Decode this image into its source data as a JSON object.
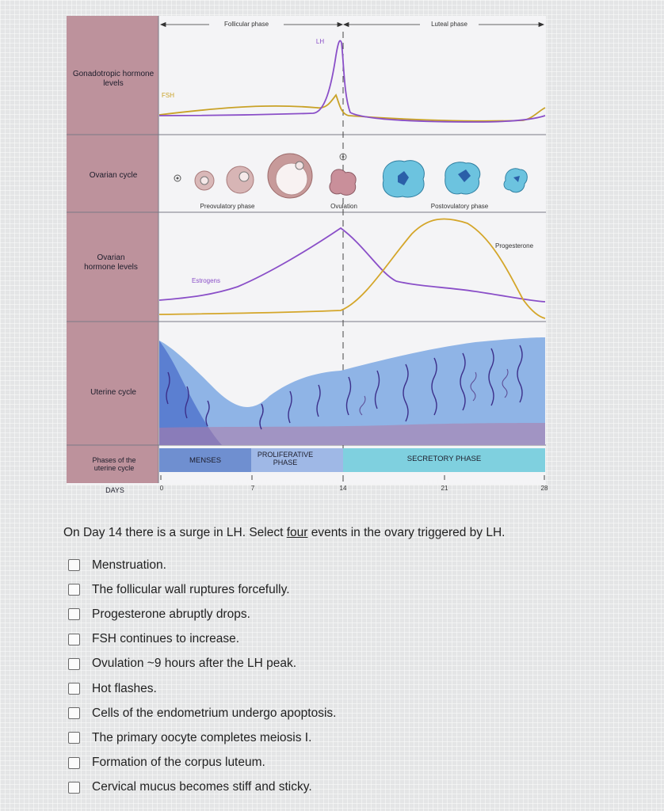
{
  "figure": {
    "row_labels": {
      "gonadotropic": "Gonadotropic hormone levels",
      "ovarian_cycle": "Ovarian cycle",
      "ovarian_hormone": "Ovarian hormone levels",
      "uterine_cycle": "Uterine cycle",
      "phases": "Phases of the uterine cycle",
      "days": "DAYS"
    },
    "top_phases": {
      "follicular": "Follicular phase",
      "luteal": "Luteal phase"
    },
    "curve_labels": {
      "lh": "LH",
      "fsh": "FSH",
      "estrogens": "Estrogens",
      "progesterone": "Progesterone"
    },
    "ovary_phases": {
      "preovulatory": "Preovulatory phase",
      "ovulation": "Ovulation",
      "postovulatory": "Postovulatory phase"
    },
    "uterine_phases": {
      "menses": "MENSES",
      "proliferative": "PROLIFERATIVE PHASE",
      "secretory": "SECRETORY PHASE"
    },
    "day_ticks": [
      "0",
      "7",
      "14",
      "21",
      "28"
    ],
    "colors": {
      "lh_fsh": "#8a4fc8",
      "fsh_line": "#c9a227",
      "estrogen": "#8a4fc8",
      "progesterone": "#d4a62a",
      "left_panel": "#b98d97",
      "menses": "#6f8fd0",
      "proliferative": "#9fb8e6",
      "secretory": "#7fd0df"
    }
  },
  "question": {
    "prefix": "On Day 14 there is a surge in LH. Select ",
    "emph": "four",
    "suffix": " events in the ovary triggered by LH."
  },
  "options": [
    "Menstruation.",
    "The follicular wall ruptures forcefully.",
    "Progesterone abruptly drops.",
    "FSH continues to increase.",
    "Ovulation ~9 hours after the LH peak.",
    "Hot flashes.",
    "Cells of the endometrium undergo apoptosis.",
    "The primary oocyte completes meiosis I.",
    "Formation of the corpus luteum.",
    "Cervical mucus becomes stiff and sticky."
  ]
}
